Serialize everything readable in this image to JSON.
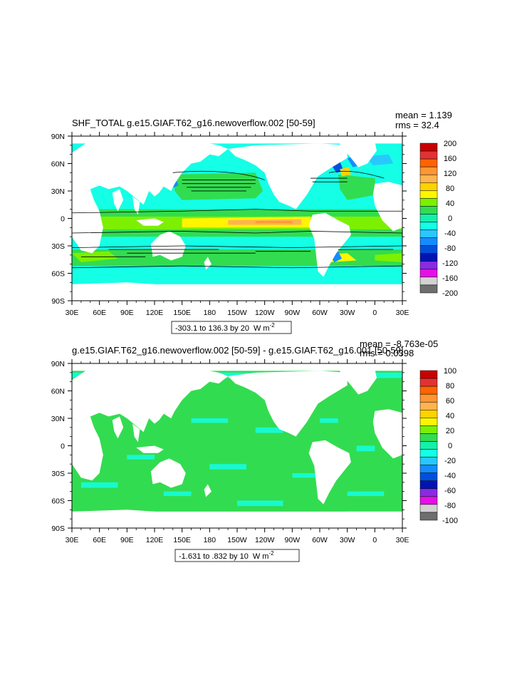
{
  "chart_data": [
    {
      "type": "heatmap",
      "title": "SHF_TOTAL g.e15.GIAF.T62_g16.newoverflow.002 [50-59]",
      "stats": {
        "mean": "mean = 1.139",
        "rms": "rms = 32.4"
      },
      "range_label": "-303.1 to 136.3 by 20",
      "units": "W m",
      "units_exp": "-2",
      "x_ticks": [
        "30E",
        "60E",
        "90E",
        "120E",
        "150E",
        "180",
        "150W",
        "120W",
        "90W",
        "60W",
        "30W",
        "0",
        "30E"
      ],
      "y_ticks": [
        "90N",
        "60N",
        "30N",
        "0",
        "30S",
        "60S",
        "90S"
      ],
      "xlim": [
        30,
        390
      ],
      "ylim": [
        -90,
        90
      ],
      "colorbar": {
        "levels": [
          "200",
          "160",
          "120",
          "80",
          "40",
          "0",
          "-40",
          "-80",
          "-120",
          "-160",
          "-200"
        ],
        "colors": [
          "#c80000",
          "#e23232",
          "#ff6400",
          "#ff9632",
          "#ffb450",
          "#ffd200",
          "#fff500",
          "#7cf000",
          "#32dc50",
          "#14f0aa",
          "#14ffe6",
          "#28c8ff",
          "#148cff",
          "#0050dc",
          "#0014b4",
          "#8a2be2",
          "#e60fe6",
          "#d2d2d2",
          "#6e6e6e"
        ]
      }
    },
    {
      "type": "heatmap",
      "title": "g.e15.GIAF.T62_g16.newoverflow.002 [50-59] - g.e15.GIAF.T62_g16.001 [50-59]",
      "stats": {
        "mean": "mean = -8.763e-05",
        "rms": "rms = 0.0398"
      },
      "range_label": "-1.631 to .832 by 10",
      "units": "W m",
      "units_exp": "-2",
      "x_ticks": [
        "30E",
        "60E",
        "90E",
        "120E",
        "150E",
        "180",
        "150W",
        "120W",
        "90W",
        "60W",
        "30W",
        "0",
        "30E"
      ],
      "y_ticks": [
        "90N",
        "60N",
        "30N",
        "0",
        "30S",
        "60S",
        "90S"
      ],
      "xlim": [
        30,
        390
      ],
      "ylim": [
        -90,
        90
      ],
      "colorbar": {
        "levels": [
          "100",
          "80",
          "60",
          "40",
          "20",
          "0",
          "-20",
          "-40",
          "-60",
          "-80",
          "-100"
        ],
        "colors": [
          "#c80000",
          "#e23232",
          "#ff6400",
          "#ff9632",
          "#ffb450",
          "#ffd200",
          "#fff500",
          "#7cf000",
          "#32dc50",
          "#14f0aa",
          "#14ffe6",
          "#28c8ff",
          "#148cff",
          "#0050dc",
          "#0014b4",
          "#8a2be2",
          "#e60fe6",
          "#d2d2d2",
          "#6e6e6e"
        ]
      }
    }
  ]
}
